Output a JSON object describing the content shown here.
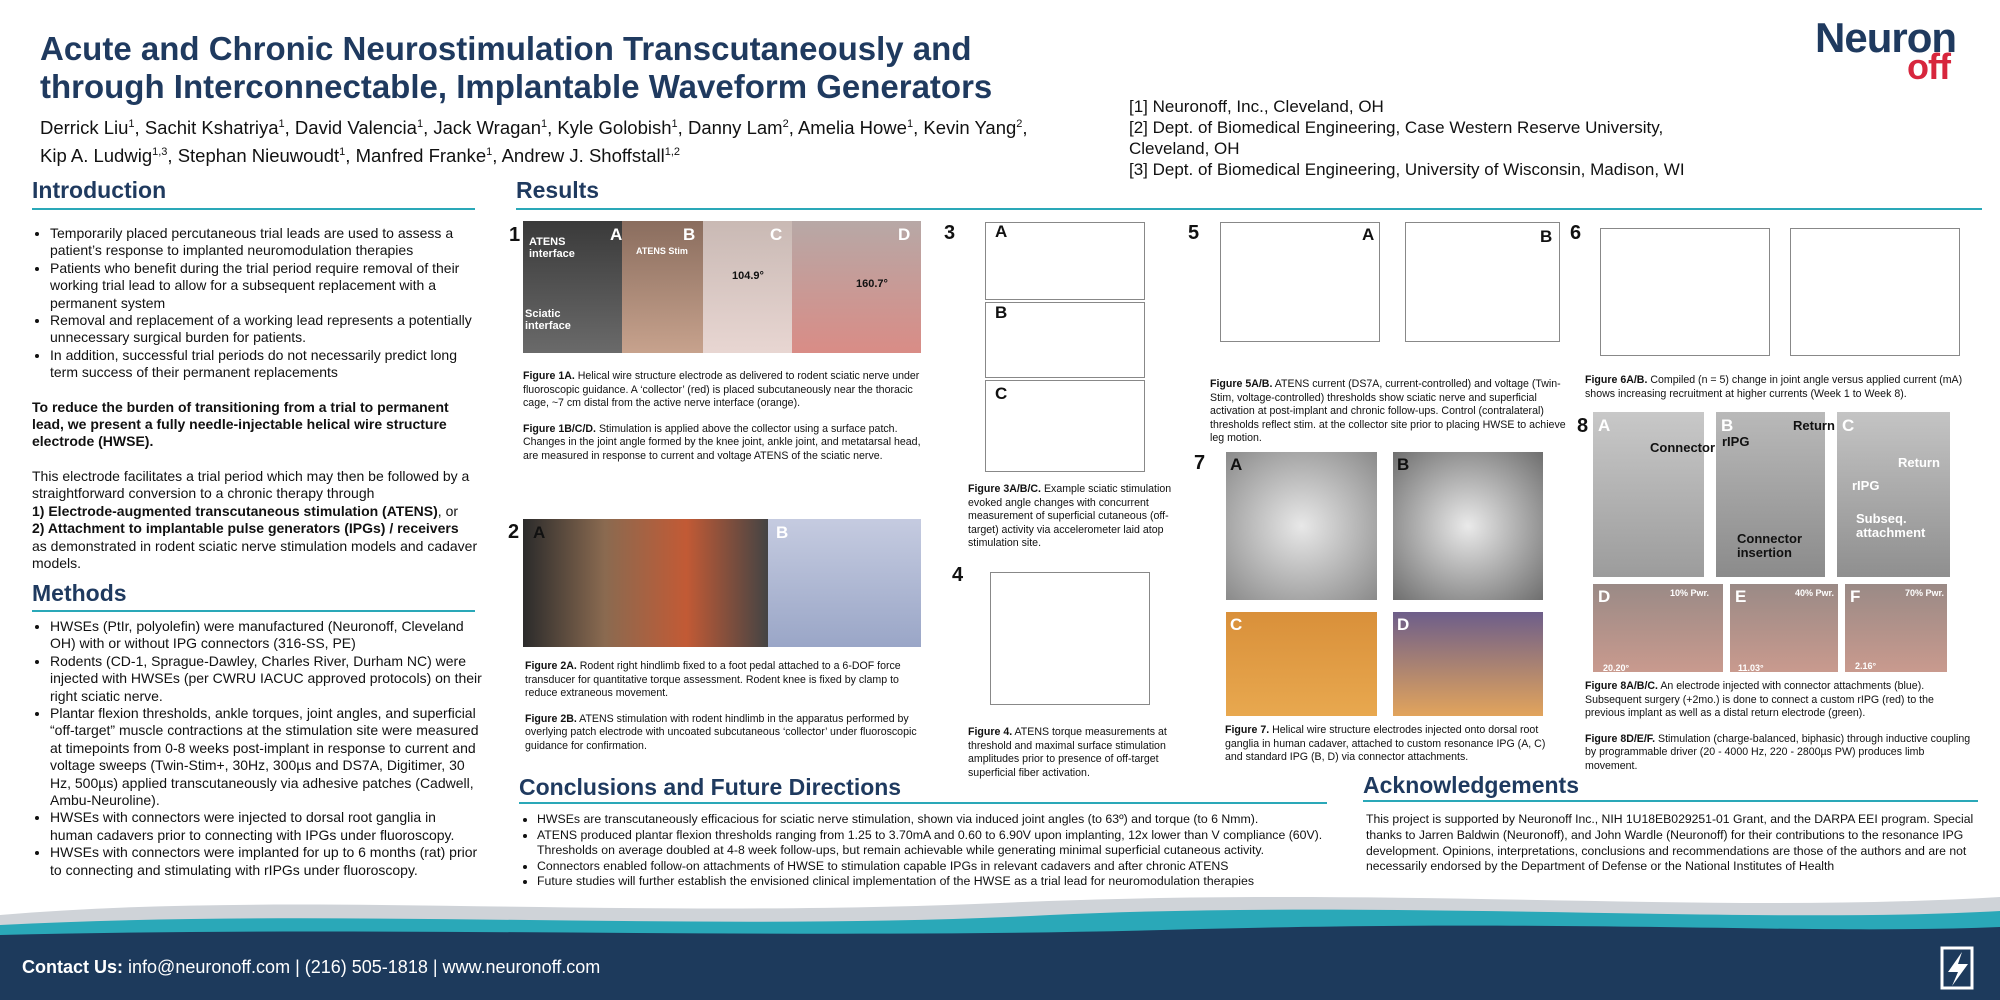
{
  "header": {
    "title": [
      "Acute and Chronic Neurostimulation Transcutaneously and",
      "through Interconnectable, Implantable Waveform Generators"
    ],
    "authors": [
      [
        {
          "name": "Derrick Liu",
          "aff": "1",
          "sep": ","
        },
        {
          "name": "Sachit Kshatriya",
          "aff": "1",
          "sep": ","
        },
        {
          "name": "David Valencia",
          "aff": "1",
          "sep": ","
        },
        {
          "name": "Jack Wragan",
          "aff": "1",
          "sep": ","
        },
        {
          "name": "Kyle Golobish",
          "aff": "1",
          "sep": ","
        },
        {
          "name": "Danny Lam",
          "aff": "2",
          "sep": ","
        },
        {
          "name": "Amelia Howe",
          "aff": "1",
          "sep": ","
        },
        {
          "name": "Kevin Yang",
          "aff": "2",
          "sep": ","
        }
      ],
      [
        {
          "name": "Kip A. Ludwig",
          "aff": "1,3",
          "sep": ","
        },
        {
          "name": "Stephan Nieuwoudt",
          "aff": "1",
          "sep": ","
        },
        {
          "name": "Manfred Franke",
          "aff": "1",
          "sep": ","
        },
        {
          "name": "Andrew J. Shoffstall",
          "aff": "1,2"
        }
      ]
    ],
    "affiliations": [
      "[1] Neuronoff, Inc., Cleveland, OH",
      "[2] Dept. of Biomedical Engineering, Case Western Reserve University, Cleveland, OH",
      "[3] Dept. of Biomedical Engineering, University of Wisconsin, Madison, WI"
    ],
    "logo": {
      "main": "Neuron",
      "accent": "off"
    }
  },
  "introduction": {
    "heading": "Introduction",
    "bullets": [
      "Temporarily placed percutaneous trial leads are used to assess a patient’s response to implanted neuromodulation therapies",
      "Patients who benefit during the trial period require removal of their working trial lead to allow for a subsequent replacement with a permanent system",
      "Removal and replacement of a working lead represents a potentially unnecessary surgical burden for patients.",
      "In addition, successful trial periods do not necessarily predict long term success of their permanent replacements"
    ],
    "emphasis": "To reduce the burden of transitioning from a trial to permanent lead, we present a fully needle-injectable helical wire structure electrode (HWSE).",
    "paragraph": "This electrode facilitates a trial period which may then be followed by a straightforward conversion to a chronic therapy through",
    "numbered": [
      {
        "bold": "1)  Electrode-augmented transcutaneous stimulation (ATENS)",
        "text": ", or"
      },
      {
        "bold": "2) Attachment to implantable pulse generators (IPGs) / receivers"
      }
    ],
    "closing": "as demonstrated in rodent sciatic nerve stimulation models and cadaver models."
  },
  "methods": {
    "heading": "Methods",
    "bullets": [
      "HWSEs (PtIr, polyolefin) were manufactured (Neuronoff, Cleveland OH) with or without IPG connectors (316-SS, PE)",
      "Rodents (CD-1, Sprague-Dawley, Charles River, Durham NC) were injected with HWSEs (per CWRU IACUC approved protocols) on their right sciatic nerve.",
      "Plantar flexion thresholds, ankle torques, joint angles, and superficial “off-target” muscle contractions at the stimulation site were measured at timepoints from 0-8 weeks post-implant in response to current and voltage sweeps (Twin-Stim+, 30Hz, 300µs and DS7A, Digitimer, 30 Hz, 500µs) applied transcutaneously via adhesive patches (Cadwell, Ambu-Neuroline).",
      "HWSEs with connectors were injected to dorsal root ganglia in human cadavers prior to connecting with IPGs under fluoroscopy.",
      "HWSEs with connectors were implanted for up to 6 months (rat) prior to connecting and stimulating with rIPGs under fluoroscopy."
    ]
  },
  "results": {
    "heading": "Results",
    "figures": [
      {
        "number": "1",
        "panels": [
          "A",
          "B",
          "C",
          "D"
        ],
        "annotations": [
          "ATENS interface",
          "ATENS Stim",
          "Sciatic interface",
          "104.9°",
          "160.7°"
        ],
        "captions": [
          {
            "label": "Figure 1A.",
            "text": "Helical wire structure electrode as delivered to rodent sciatic nerve under fluoroscopic guidance. A ‘collector’ (red) is placed subcutaneously near the thoracic cage, ~7 cm distal from the active nerve interface (orange)."
          },
          {
            "label": "Figure 1B/C/D.",
            "text": "Stimulation is applied above the collector using a surface patch. Changes in the joint angle formed by the knee joint, ankle joint, and metatarsal head, are measured in response to current and voltage ATENS of the sciatic nerve."
          }
        ]
      },
      {
        "number": "2",
        "panels": [
          "A",
          "B"
        ],
        "captions": [
          {
            "label": "Figure 2A.",
            "text": "Rodent right hindlimb fixed to a foot pedal attached to a 6-DOF force transducer for quantitative torque assessment. Rodent knee is fixed by clamp to reduce extraneous movement."
          },
          {
            "label": "Figure 2B.",
            "text": "ATENS stimulation with rodent hindlimb in the apparatus performed by overlying patch electrode with uncoated subcutaneous ‘collector’ under fluoroscopic guidance for confirmation."
          }
        ]
      },
      {
        "number": "3",
        "panels": [
          "A",
          "B",
          "C"
        ],
        "captions": [
          {
            "label": "Figure 3A/B/C.",
            "text": "Example sciatic stimulation evoked angle changes with concurrent measurement of superficial cutaneous (off-target) activity via accelerometer laid atop stimulation site."
          }
        ]
      },
      {
        "number": "4",
        "captions": [
          {
            "label": "Figure 4.",
            "text": "ATENS torque measurements at threshold and maximal surface stimulation amplitudes prior to presence of off-target superficial fiber activation."
          }
        ]
      },
      {
        "number": "5",
        "panels": [
          "A",
          "B"
        ],
        "captions": [
          {
            "label": "Figure 5A/B.",
            "text": "ATENS current (DS7A, current-controlled) and voltage (Twin-Stim, voltage-controlled) thresholds show sciatic nerve and superficial  activation at post-implant and chronic follow-ups. Control (contralateral) thresholds reflect stim. at the collector site prior to placing HWSE to achieve leg motion."
          }
        ]
      },
      {
        "number": "6",
        "captions": [
          {
            "label": "Figure 6A/B.",
            "text": "Compiled (n = 5) change in joint angle versus applied current (mA) shows increasing recruitment at higher currents (Week 1 to Week 8)."
          }
        ]
      },
      {
        "number": "7",
        "panels": [
          "A",
          "B",
          "C",
          "D"
        ],
        "captions": [
          {
            "label": "Figure 7.",
            "text": "Helical wire structure electrodes injected onto dorsal root ganglia in human cadaver, attached to custom resonance IPG (A, C) and standard IPG (B, D) via connector attachments."
          }
        ]
      },
      {
        "number": "8",
        "panels": [
          "A",
          "B",
          "C",
          "D",
          "E",
          "F"
        ],
        "annotations": [
          "Connector",
          "rIPG",
          "Return",
          "Connector insertion",
          "rIPG",
          "Return",
          "Subseq. attachment",
          "10% Pwr.",
          "40% Pwr.",
          "70% Pwr.",
          "20.20°",
          "11.03°",
          "2.16°"
        ],
        "captions": [
          {
            "label": "Figure 8A/B/C.",
            "text": "An electrode injected with connector attachments (blue). Subsequent surgery (+2mo.) is done to connect a custom rIPG (red) to the previous implant as well as a distal return electrode (green)."
          },
          {
            "label": "Figure 8D/E/F.",
            "text": "Stimulation (charge-balanced, biphasic) through inductive coupling by programmable driver (20 - 4000 Hz, 220 - 2800µs PW) produces limb movement."
          }
        ]
      }
    ]
  },
  "conclusions": {
    "heading": "Conclusions and Future Directions",
    "bullets": [
      "HWSEs are transcutaneously efficacious for sciatic nerve stimulation, shown via  induced joint angles (to 63º) and torque (to 6 Nmm).",
      "ATENS produced plantar flexion thresholds ranging from 1.25 to 3.70mA and 0.60 to 6.90V upon implanting, 12x lower than V compliance (60V). Thresholds on average doubled at 4-8 week follow-ups, but remain achievable while generating minimal superficial cutaneous activity.",
      "Connectors enabled follow-on attachments of HWSE  to stimulation capable IPGs in relevant cadavers and after chronic ATENS",
      "Future studies will further establish the envisioned clinical implementation of the HWSE as a trial lead for neuromodulation therapies"
    ]
  },
  "acknowledgements": {
    "heading": "Acknowledgements",
    "text": "This project is supported by Neuronoff Inc., NIH 1U18EB029251-01 Grant, and the DARPA EEI program. Special thanks to Jarren Baldwin (Neuronoff), and John Wardle (Neuronoff) for their contributions to the resonance IPG development. Opinions, interpretations, conclusions and recommendations are those of the authors and are not necessarily endorsed by the Department of Defense or the National Institutes of Health"
  },
  "footer": {
    "label": "Contact Us:",
    "text": "info@neuronoff.com | (216) 505-1818 | www.neuronoff.com"
  }
}
